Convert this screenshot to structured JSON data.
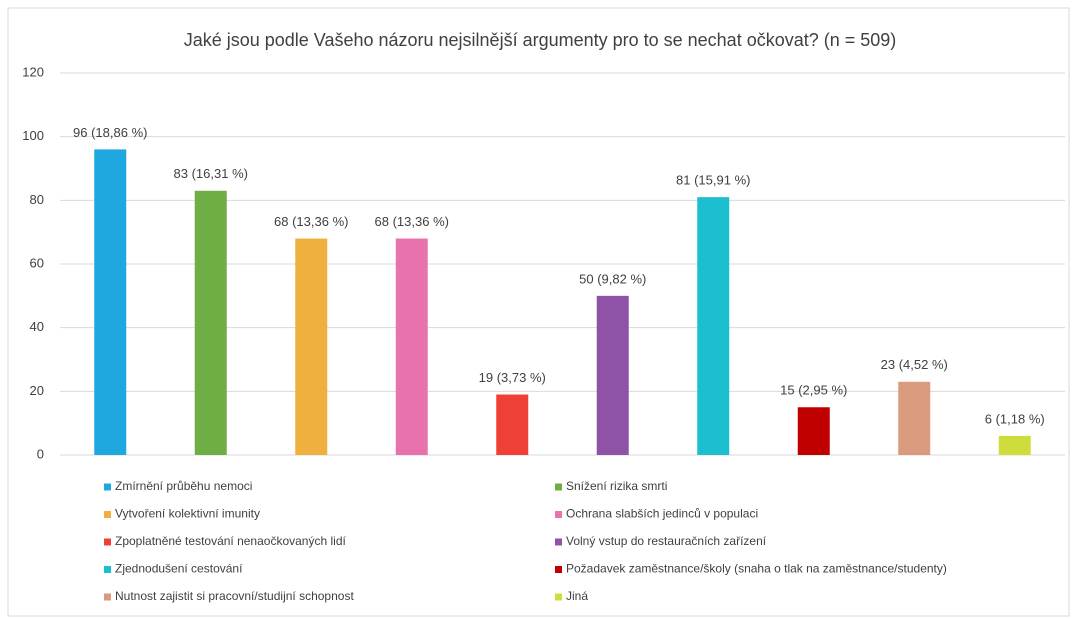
{
  "chart_data": {
    "type": "bar",
    "title": "Jaké jsou podle Vašeho názoru nejsilnější argumenty pro to se nechat očkovat? (n = 509)",
    "categories": [
      "Zmírnění průběhu nemoci",
      "Snížení rizika smrti",
      "Vytvoření kolektivní imunity",
      "Ochrana slabších jedinců v populaci",
      "Zpoplatněné testování nenaočkovaných lidí",
      "Volný vstup do restauračních zařízení",
      "Zjednodušení cestování",
      "Požadavek zaměstnance/školy (snaha o tlak na zaměstnance/studenty)",
      "Nutnost zajistit si pracovní/studijní schopnost",
      "Jiná"
    ],
    "values": [
      96,
      83,
      68,
      68,
      19,
      50,
      81,
      15,
      23,
      6
    ],
    "value_labels": [
      "96 (18,86 %)",
      "83 (16,31 %)",
      "68 (13,36 %)",
      "68 (13,36 %)",
      "19 (3,73 %)",
      "50 (9,82 %)",
      "81 (15,91 %)",
      "15 (2,95 %)",
      "23 (4,52 %)",
      "6 (1,18 %)"
    ],
    "colors": [
      "#1fa8e0",
      "#6fae44",
      "#f0b040",
      "#e872ab",
      "#ee4035",
      "#8e52a6",
      "#1cbfd0",
      "#c00000",
      "#d99a7e",
      "#cfdd3c"
    ],
    "ylim": [
      0,
      120
    ],
    "yticks": [
      0,
      20,
      40,
      60,
      80,
      100,
      120
    ],
    "grid": true
  }
}
